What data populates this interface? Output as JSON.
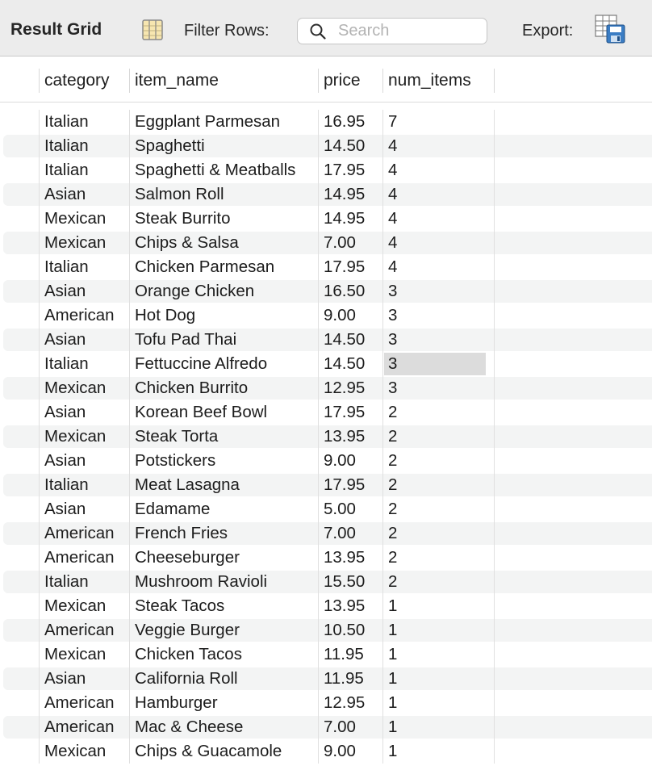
{
  "toolbar": {
    "title": "Result Grid",
    "filter_label": "Filter Rows:",
    "search_placeholder": "Search",
    "export_label": "Export:"
  },
  "columns": [
    "category",
    "item_name",
    "price",
    "num_items"
  ],
  "rows": [
    [
      "Italian",
      "Eggplant Parmesan",
      "16.95",
      "7"
    ],
    [
      "Italian",
      "Spaghetti",
      "14.50",
      "4"
    ],
    [
      "Italian",
      "Spaghetti & Meatballs",
      "17.95",
      "4"
    ],
    [
      "Asian",
      "Salmon Roll",
      "14.95",
      "4"
    ],
    [
      "Mexican",
      "Steak Burrito",
      "14.95",
      "4"
    ],
    [
      "Mexican",
      "Chips & Salsa",
      "7.00",
      "4"
    ],
    [
      "Italian",
      "Chicken Parmesan",
      "17.95",
      "4"
    ],
    [
      "Asian",
      "Orange Chicken",
      "16.50",
      "3"
    ],
    [
      "American",
      "Hot Dog",
      "9.00",
      "3"
    ],
    [
      "Asian",
      "Tofu Pad Thai",
      "14.50",
      "3"
    ],
    [
      "Italian",
      "Fettuccine Alfredo",
      "14.50",
      "3"
    ],
    [
      "Mexican",
      "Chicken Burrito",
      "12.95",
      "3"
    ],
    [
      "Asian",
      "Korean Beef Bowl",
      "17.95",
      "2"
    ],
    [
      "Mexican",
      "Steak Torta",
      "13.95",
      "2"
    ],
    [
      "Asian",
      "Potstickers",
      "9.00",
      "2"
    ],
    [
      "Italian",
      "Meat Lasagna",
      "17.95",
      "2"
    ],
    [
      "Asian",
      "Edamame",
      "5.00",
      "2"
    ],
    [
      "American",
      "French Fries",
      "7.00",
      "2"
    ],
    [
      "American",
      "Cheeseburger",
      "13.95",
      "2"
    ],
    [
      "Italian",
      "Mushroom Ravioli",
      "15.50",
      "2"
    ],
    [
      "Mexican",
      "Steak Tacos",
      "13.95",
      "1"
    ],
    [
      "American",
      "Veggie Burger",
      "10.50",
      "1"
    ],
    [
      "Mexican",
      "Chicken Tacos",
      "11.95",
      "1"
    ],
    [
      "Asian",
      "California Roll",
      "11.95",
      "1"
    ],
    [
      "American",
      "Hamburger",
      "12.95",
      "1"
    ],
    [
      "American",
      "Mac & Cheese",
      "7.00",
      "1"
    ],
    [
      "Mexican",
      "Chips & Guacamole",
      "9.00",
      "1"
    ]
  ],
  "selected_cell": {
    "row": 10,
    "col": 3
  },
  "icons": {
    "grid_toggle": "column-grid-icon",
    "search": "search-icon",
    "export": "export-spreadsheet-icon"
  },
  "colors": {
    "toolbar_bg": "#ececec",
    "alt_row_bg": "#f3f4f4",
    "selected_cell_bg": "#dcdcdc"
  }
}
